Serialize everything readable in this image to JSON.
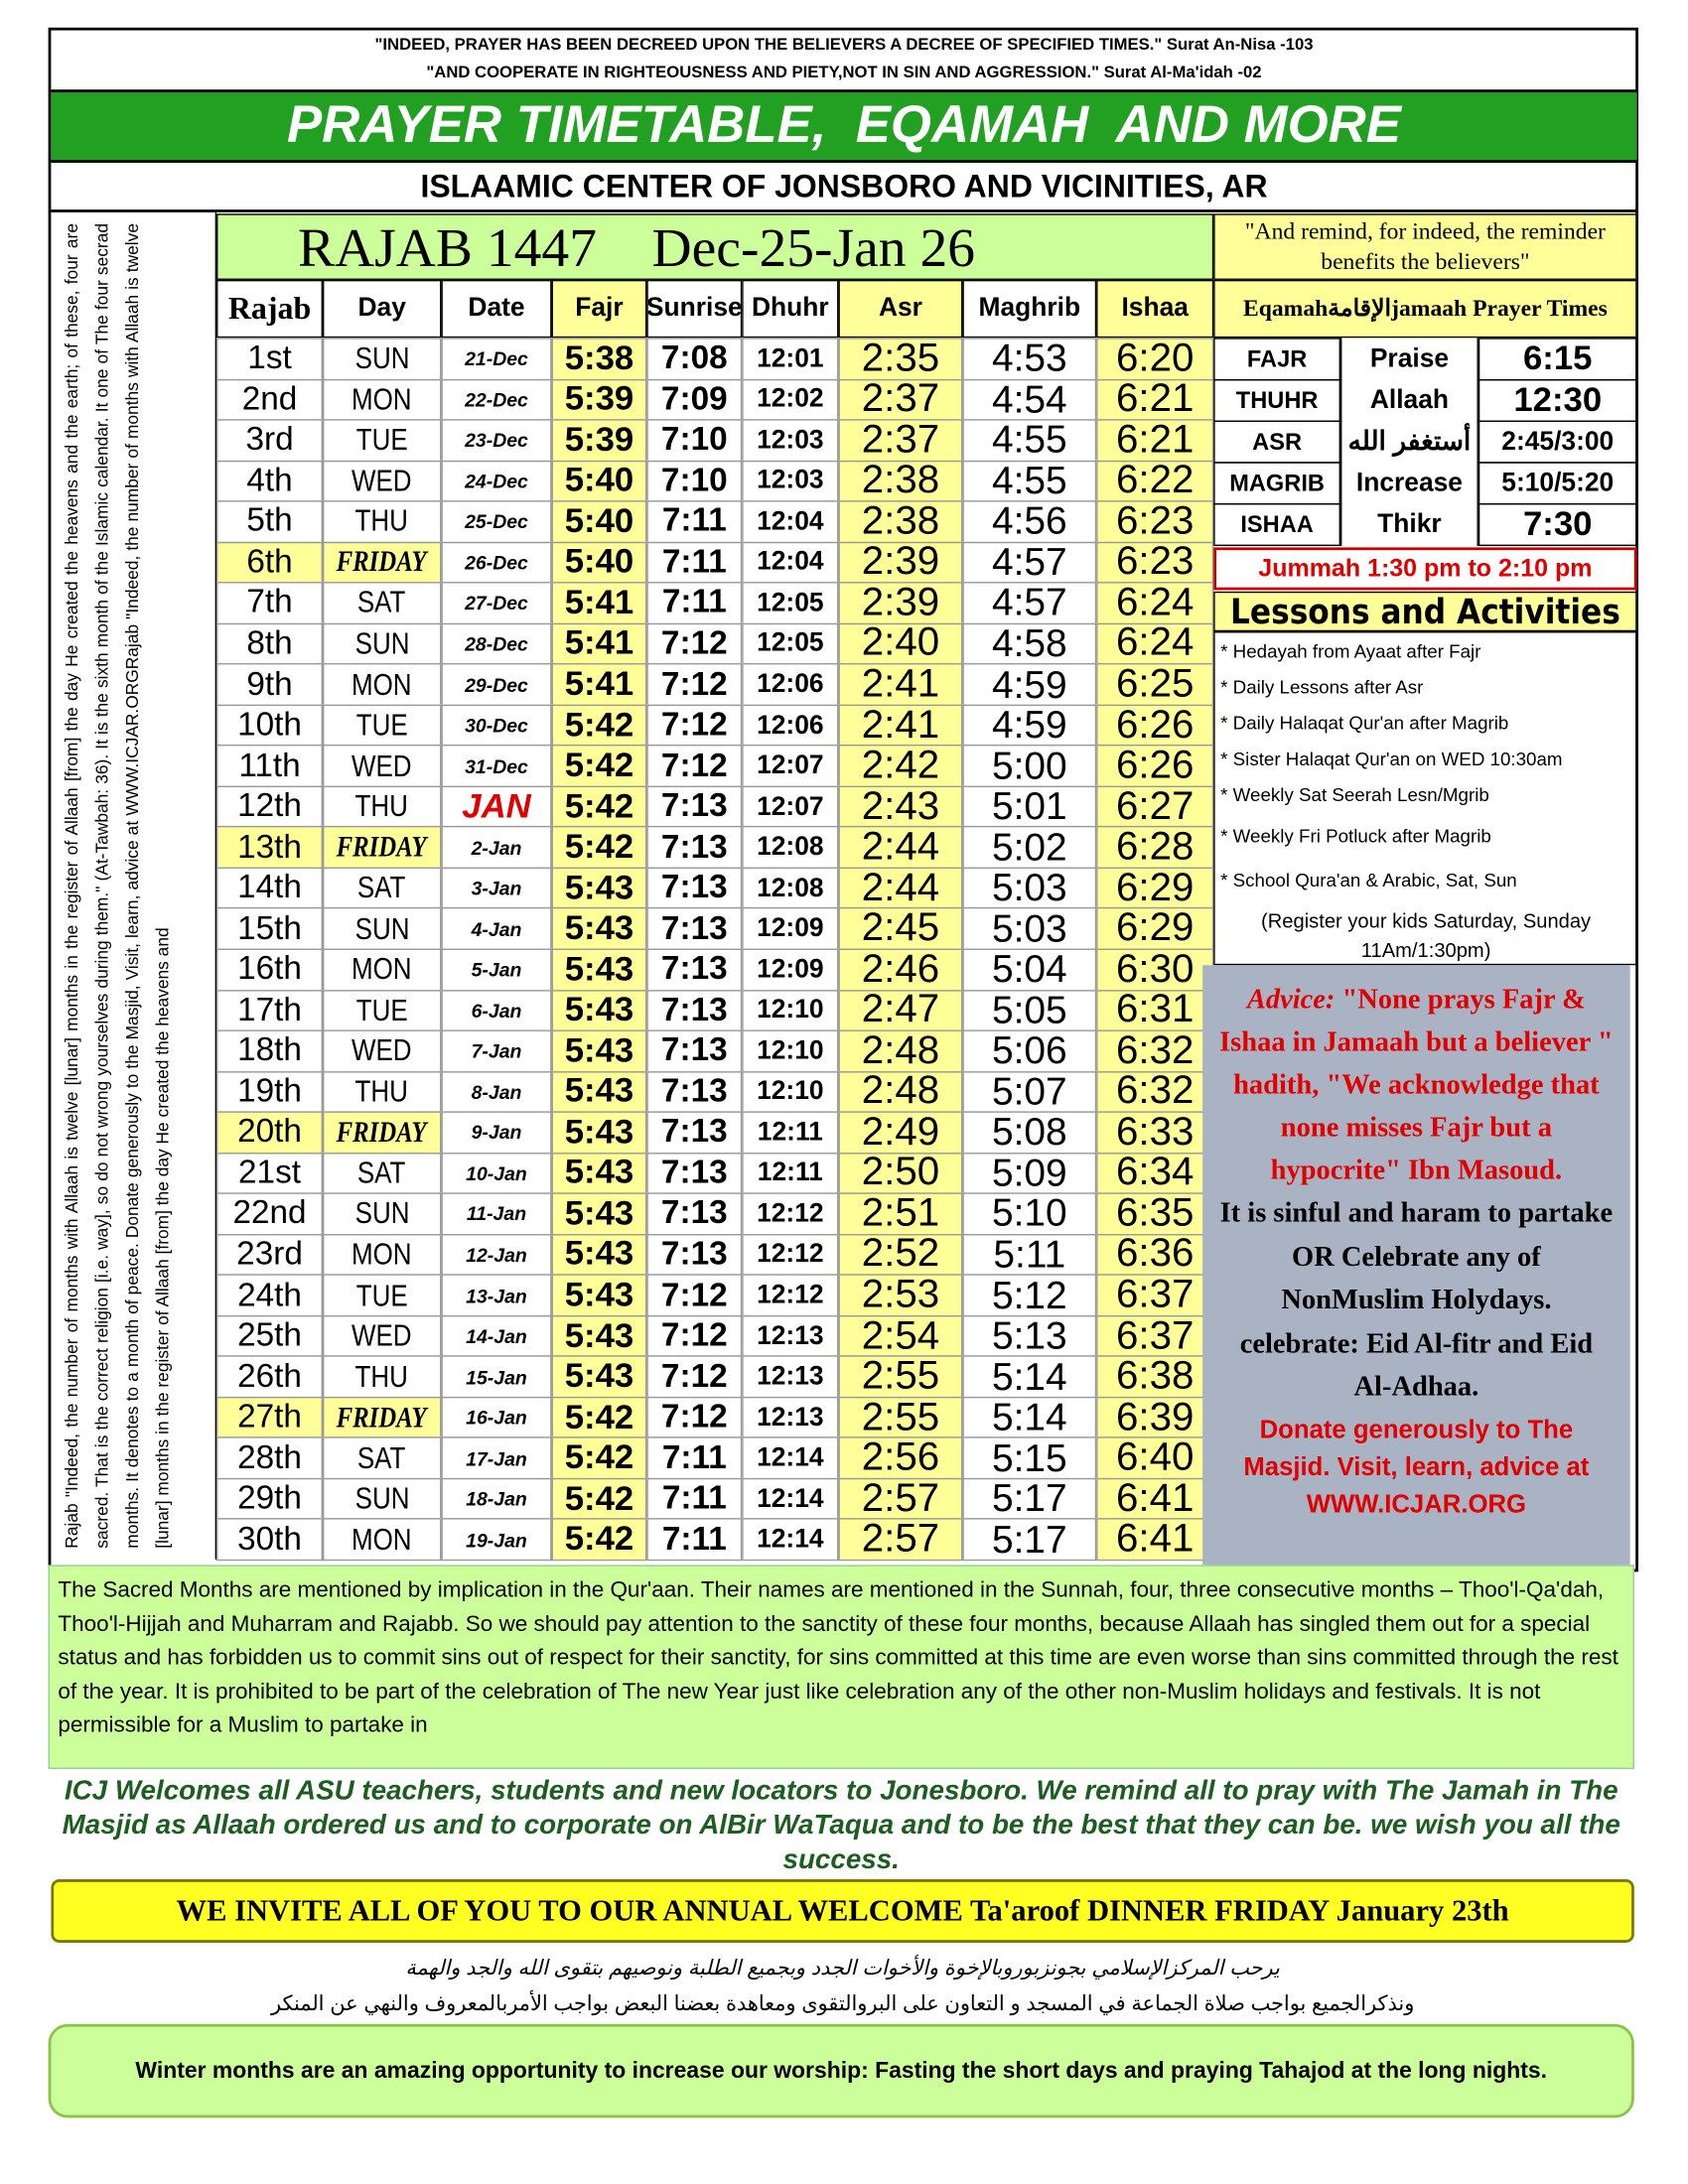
{
  "header": {
    "quotes": [
      "\"INDEED, PRAYER HAS BEEN DECREED UPON THE BELIEVERS A DECREE OF SPECIFIED TIMES.\" Surat An-Nisa -103",
      "\"AND COOPERATE IN RIGHTEOUSNESS AND PIETY,NOT IN SIN AND AGGRESSION.\" Surat Al-Ma'idah -02"
    ],
    "title": "PRAYER TIMETABLE,  EQAMAH  AND MORE",
    "subtitle": "ISLAAMIC CENTER OF JONSBORO AND VICINITIES, AR"
  },
  "side_text": "Rajab  \"Indeed, the number of months with Allaah is twelve [lunar] months in the register of Allaah [from] the day He created the heavens and the earth; of these, four are sacred. That is the correct religion [i.e. way], so do  not  wrong yourselves during them.\" (At-Tawbah: 36). It is the sixth month of the Islamic calendar. It one of The four secrad months. It denotes to a month of peace. Donate generously  to the Masjid,   Visit,  learn,  advice at WWW.ICJAR.ORGRajab  \"Indeed, the number of months with Allaah is twelve [lunar] months in the register of Allaah [from] the day He created the heavens and",
  "table": {
    "heading": "RAJAB 1447    Dec-25-Jan 26",
    "columns": [
      "Rajab",
      "Day",
      "Date",
      "Fajr",
      "Sunrise",
      "Dhuhr",
      "Asr",
      "Maghrib",
      "Ishaa"
    ],
    "rows": [
      [
        "1st",
        "SUN",
        "21-Dec",
        "5:38",
        "7:08",
        "12:01",
        "2:35",
        "4:53",
        "6:20"
      ],
      [
        "2nd",
        "MON",
        "22-Dec",
        "5:39",
        "7:09",
        "12:02",
        "2:37",
        "4:54",
        "6:21"
      ],
      [
        "3rd",
        "TUE",
        "23-Dec",
        "5:39",
        "7:10",
        "12:03",
        "2:37",
        "4:55",
        "6:21"
      ],
      [
        "4th",
        "WED",
        "24-Dec",
        "5:40",
        "7:10",
        "12:03",
        "2:38",
        "4:55",
        "6:22"
      ],
      [
        "5th",
        "THU",
        "25-Dec",
        "5:40",
        "7:11",
        "12:04",
        "2:38",
        "4:56",
        "6:23"
      ],
      [
        "6th",
        "FRIDAY",
        "26-Dec",
        "5:40",
        "7:11",
        "12:04",
        "2:39",
        "4:57",
        "6:23"
      ],
      [
        "7th",
        "SAT",
        "27-Dec",
        "5:41",
        "7:11",
        "12:05",
        "2:39",
        "4:57",
        "6:24"
      ],
      [
        "8th",
        "SUN",
        "28-Dec",
        "5:41",
        "7:12",
        "12:05",
        "2:40",
        "4:58",
        "6:24"
      ],
      [
        "9th",
        "MON",
        "29-Dec",
        "5:41",
        "7:12",
        "12:06",
        "2:41",
        "4:59",
        "6:25"
      ],
      [
        "10th",
        "TUE",
        "30-Dec",
        "5:42",
        "7:12",
        "12:06",
        "2:41",
        "4:59",
        "6:26"
      ],
      [
        "11th",
        "WED",
        "31-Dec",
        "5:42",
        "7:12",
        "12:07",
        "2:42",
        "5:00",
        "6:26"
      ],
      [
        "12th",
        "THU",
        "JAN",
        "5:42",
        "7:13",
        "12:07",
        "2:43",
        "5:01",
        "6:27"
      ],
      [
        "13th",
        "FRIDAY",
        "2-Jan",
        "5:42",
        "7:13",
        "12:08",
        "2:44",
        "5:02",
        "6:28"
      ],
      [
        "14th",
        "SAT",
        "3-Jan",
        "5:43",
        "7:13",
        "12:08",
        "2:44",
        "5:03",
        "6:29"
      ],
      [
        "15th",
        "SUN",
        "4-Jan",
        "5:43",
        "7:13",
        "12:09",
        "2:45",
        "5:03",
        "6:29"
      ],
      [
        "16th",
        "MON",
        "5-Jan",
        "5:43",
        "7:13",
        "12:09",
        "2:46",
        "5:04",
        "6:30"
      ],
      [
        "17th",
        "TUE",
        "6-Jan",
        "5:43",
        "7:13",
        "12:10",
        "2:47",
        "5:05",
        "6:31"
      ],
      [
        "18th",
        "WED",
        "7-Jan",
        "5:43",
        "7:13",
        "12:10",
        "2:48",
        "5:06",
        "6:32"
      ],
      [
        "19th",
        "THU",
        "8-Jan",
        "5:43",
        "7:13",
        "12:10",
        "2:48",
        "5:07",
        "6:32"
      ],
      [
        "20th",
        "FRIDAY",
        "9-Jan",
        "5:43",
        "7:13",
        "12:11",
        "2:49",
        "5:08",
        "6:33"
      ],
      [
        "21st",
        "SAT",
        "10-Jan",
        "5:43",
        "7:13",
        "12:11",
        "2:50",
        "5:09",
        "6:34"
      ],
      [
        "22nd",
        "SUN",
        "11-Jan",
        "5:43",
        "7:13",
        "12:12",
        "2:51",
        "5:10",
        "6:35"
      ],
      [
        "23rd",
        "MON",
        "12-Jan",
        "5:43",
        "7:13",
        "12:12",
        "2:52",
        "5:11",
        "6:36"
      ],
      [
        "24th",
        "TUE",
        "13-Jan",
        "5:43",
        "7:12",
        "12:12",
        "2:53",
        "5:12",
        "6:37"
      ],
      [
        "25th",
        "WED",
        "14-Jan",
        "5:43",
        "7:12",
        "12:13",
        "2:54",
        "5:13",
        "6:37"
      ],
      [
        "26th",
        "THU",
        "15-Jan",
        "5:43",
        "7:12",
        "12:13",
        "2:55",
        "5:14",
        "6:38"
      ],
      [
        "27th",
        "FRIDAY",
        "16-Jan",
        "5:42",
        "7:12",
        "12:13",
        "2:55",
        "5:14",
        "6:39"
      ],
      [
        "28th",
        "SAT",
        "17-Jan",
        "5:42",
        "7:11",
        "12:14",
        "2:56",
        "5:15",
        "6:40"
      ],
      [
        "29th",
        "SUN",
        "18-Jan",
        "5:42",
        "7:11",
        "12:14",
        "2:57",
        "5:17",
        "6:41"
      ],
      [
        "30th",
        "MON",
        "19-Jan",
        "5:42",
        "7:11",
        "12:14",
        "2:57",
        "5:17",
        "6:41"
      ]
    ]
  },
  "eqamah": {
    "quote": "\"And remind, for indeed, the reminder benefits the believers\"",
    "heading": "Eqamahالإقامةjamaah Prayer Times",
    "rows": [
      [
        "FAJR",
        "Praise",
        "6:15"
      ],
      [
        "THUHR",
        "Allaah",
        "12:30"
      ],
      [
        "ASR",
        "أستغفر الله",
        "2:45/3:00"
      ],
      [
        "MAGRIB",
        "Increase",
        "5:10/5:20"
      ],
      [
        "ISHAA",
        "Thikr",
        "7:30"
      ]
    ],
    "jummah": "Jummah 1:30 pm to 2:10 pm"
  },
  "lessons": {
    "title": "Lessons and Activities",
    "items": [
      "* Hedayah from Ayaat after Fajr",
      "* Daily Lessons  after Asr",
      "* Daily Halaqat Qur'an after Magrib",
      "* Sister Halaqat Qur'an on WED 10:30am",
      "* Weekly Sat Seerah Lesn/Mgrib",
      "* Weekly Fri Potluck after Magrib",
      "* School Qura'an & Arabic, Sat, Sun"
    ],
    "note": "(Register your kids Saturday, Sunday 11Am/1:30pm)"
  },
  "advice": {
    "label": "Advice:",
    "quote": "\"None prays Fajr & Ishaa in Jamaah but a believer \" hadith, \"We acknowledge that none misses Fajr but a hypocrite\" Ibn  Masoud.",
    "ruling": "It is sinful and haram to partake OR Celebrate any of NonMuslim Holydays. celebrate: Eid Al-fitr and Eid Al-Adhaa.",
    "donate": "Donate generously to The Masjid. Visit, learn, advice at WWW.ICJAR.ORG"
  },
  "sacred_months": "The Sacred Months are mentioned by implication in the Qur'aan. Their names are mentioned in the Sunnah, four, three consecutive months – Thoo'l-Qa'dah, Thoo'l-Hijjah and Muharram and Rajabb. So we should pay attention to the sanctity of these four months, because Allaah has singled them out for a special status and has forbidden us to commit sins out of respect for their sanctity, for sins committed at this time are even worse than sins committed through the rest of the year. It is prohibited to be part of the celebration of The new Year just like celebration any of the other non-Muslim holidays and festivals. It is not permissible for a Muslim to partake in",
  "welcome": "ICJ Welcomes all ASU teachers, students and new locators to Jonesboro. We remind all to pray with The Jamah in The Masjid as Allaah ordered us and to corporate on AlBir WaTaqua and to be the best that they can be. we wish you all the success.",
  "invite": "WE INVITE ALL OF YOU TO OUR ANNUAL WELCOME Ta'aroof DINNER FRIDAY January 23th",
  "arabic": [
    "يرحب المركزالإسلامي بجونزبوروبالإخوة والأخوات الجدد  وبجميع الطلبة ونوصيهم بتقوى الله والجد والهمة",
    "ونذكرالجميع بواجب صلاة الجماعة في المسجد و التعاون على البروالتقوى ومعاهدة بعضنا البعض بواجب الأمربالمعروف والنهي عن المنكر"
  ],
  "winter": "Winter months are an amazing opportunity to increase our worship: Fasting the short days and praying Tahajod at the long nights."
}
